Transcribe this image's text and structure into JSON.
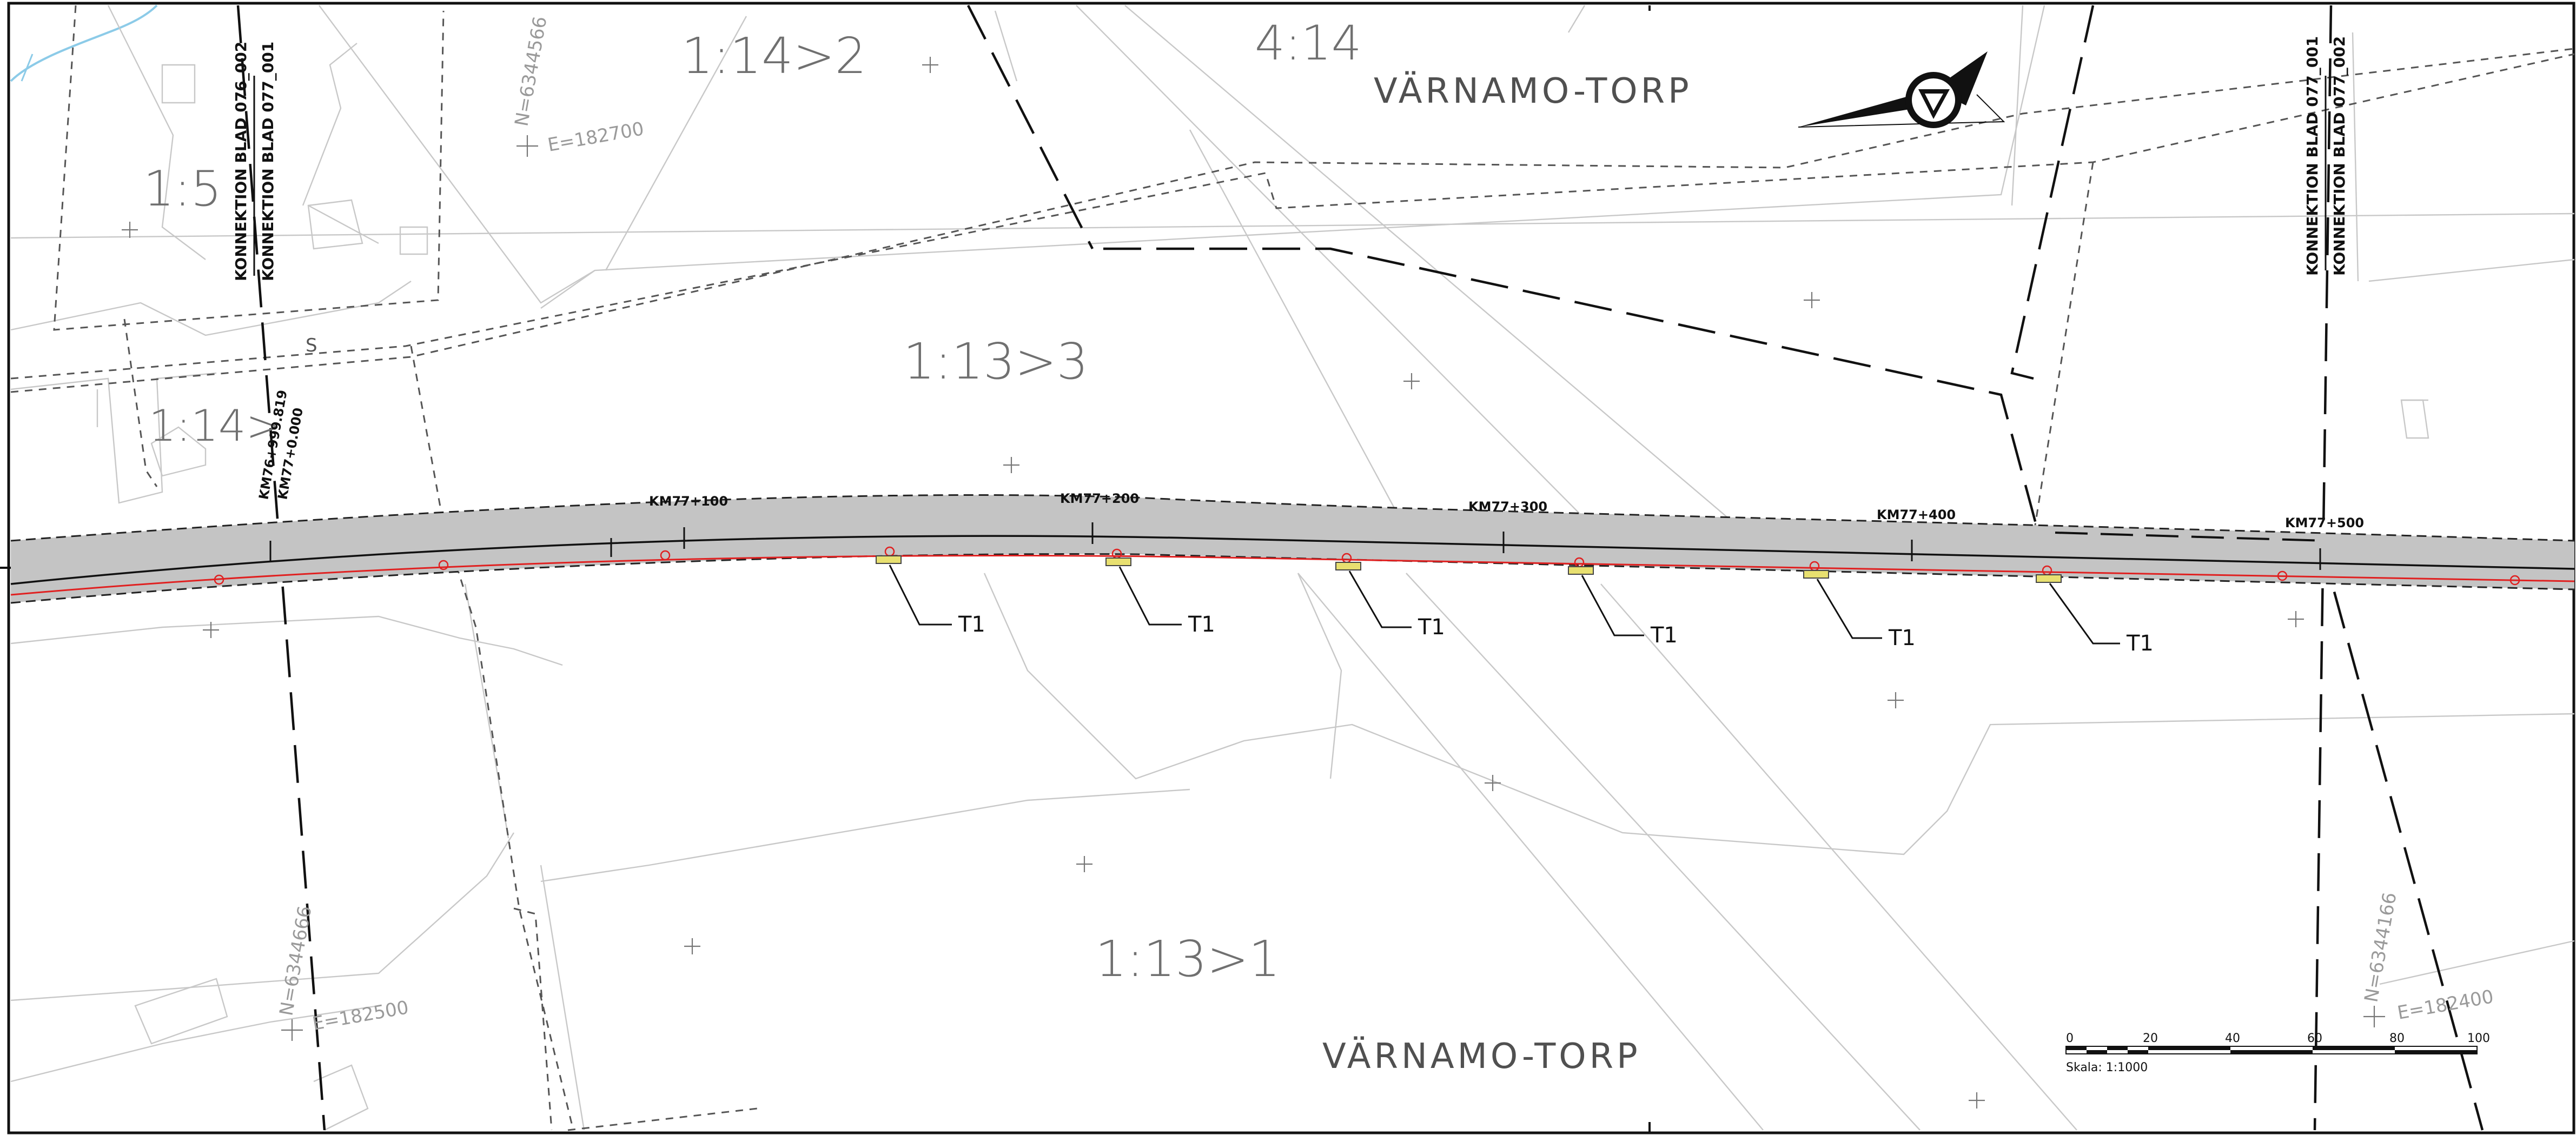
{
  "place_names": [
    "VÄRNAMO-TORP",
    "VÄRNAMO-TORP"
  ],
  "property_labels": [
    "1:14>2",
    "4:14",
    "1:5",
    "1:13>3",
    "1:14>",
    "1:13>1"
  ],
  "coordinate_labels": [
    "N=6344566",
    "E=182700",
    "N=6344666",
    "E=182500",
    "N=6344166",
    "E=182400"
  ],
  "connection_labels": [
    "KONNEKTION BLAD 076_002",
    "KONNEKTION BLAD 077_001",
    "KONNEKTION BLAD 077_001",
    "KONNEKTION BLAD 077_002"
  ],
  "chainage_labels": [
    "KM76+999.819",
    "KM77+0.000",
    "KM77+100",
    "KM77+200",
    "KM77+300",
    "KM77+400",
    "KM77+500"
  ],
  "post_labels": [
    "T1",
    "T1",
    "T1",
    "T1",
    "T1",
    "T1"
  ],
  "small_labels": [
    "S"
  ],
  "scale_bar": {
    "ticks": [
      "0",
      "20",
      "40",
      "60",
      "80",
      "100"
    ],
    "caption": "Skala: 1:1000"
  },
  "colors": {
    "road_fill": "#c4c4c4",
    "route_line": "#e02020",
    "post_marker": "#e8e070",
    "boundary": "#111111",
    "parcel_line": "#c8c8c8"
  },
  "icons": [
    "north-arrow-icon",
    "water-stream"
  ]
}
